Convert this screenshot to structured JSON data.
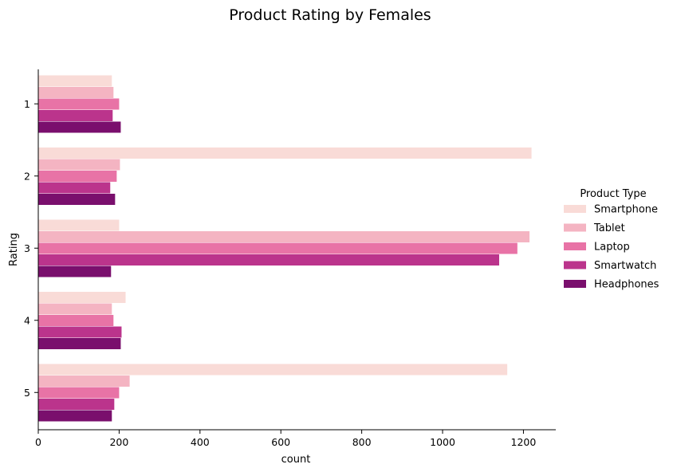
{
  "chart_data": {
    "type": "bar",
    "orientation": "horizontal",
    "title": "Product Rating by Females",
    "xlabel": "count",
    "ylabel": "Rating",
    "xlim": [
      0,
      1280
    ],
    "xticks": [
      0,
      200,
      400,
      600,
      800,
      1000,
      1200
    ],
    "categories": [
      "1",
      "2",
      "3",
      "4",
      "5"
    ],
    "grid": false,
    "legend": {
      "title": "Product Type",
      "placement": "right"
    },
    "series": [
      {
        "name": "Smartphone",
        "color": "#f9dbd7",
        "values": [
          182,
          1220,
          200,
          216,
          1160
        ]
      },
      {
        "name": "Tablet",
        "color": "#f4b4c2",
        "values": [
          186,
          202,
          1215,
          182,
          226
        ]
      },
      {
        "name": "Laptop",
        "color": "#e873a6",
        "values": [
          200,
          194,
          1185,
          186,
          200
        ]
      },
      {
        "name": "Smartwatch",
        "color": "#bb348c",
        "values": [
          184,
          178,
          1140,
          206,
          188
        ]
      },
      {
        "name": "Headphones",
        "color": "#7a0f6d",
        "values": [
          204,
          190,
          180,
          204,
          182
        ]
      }
    ]
  }
}
